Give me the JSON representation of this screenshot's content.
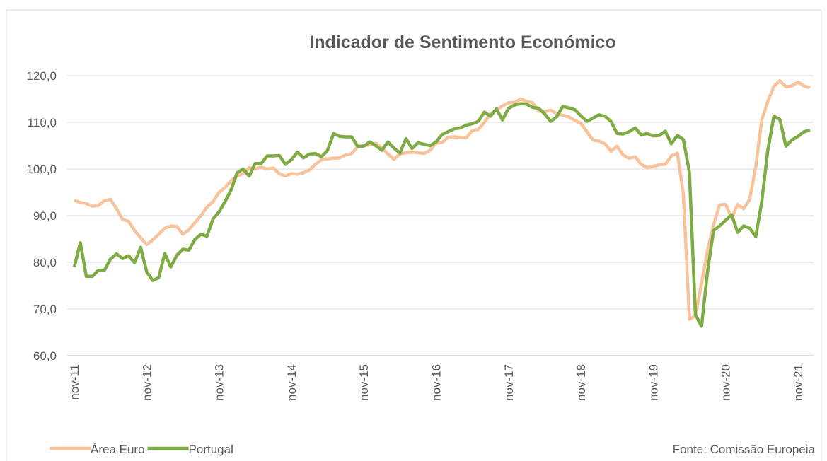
{
  "chart_data": {
    "type": "line",
    "title": "Indicador de Sentimento Económico",
    "source": "Fonte: Comissão Europeia",
    "categories": [
      "nov-11",
      null,
      null,
      null,
      null,
      null,
      null,
      null,
      null,
      null,
      null,
      null,
      "nov-12",
      null,
      null,
      null,
      null,
      null,
      null,
      null,
      null,
      null,
      null,
      null,
      "nov-13",
      null,
      null,
      null,
      null,
      null,
      null,
      null,
      null,
      null,
      null,
      null,
      "nov-14",
      null,
      null,
      null,
      null,
      null,
      null,
      null,
      null,
      null,
      null,
      null,
      "nov-15",
      null,
      null,
      null,
      null,
      null,
      null,
      null,
      null,
      null,
      null,
      null,
      "nov-16",
      null,
      null,
      null,
      null,
      null,
      null,
      null,
      null,
      null,
      null,
      null,
      "nov-17",
      null,
      null,
      null,
      null,
      null,
      null,
      null,
      null,
      null,
      null,
      null,
      "nov-18",
      null,
      null,
      null,
      null,
      null,
      null,
      null,
      null,
      null,
      null,
      null,
      "nov-19",
      null,
      null,
      null,
      null,
      null,
      null,
      null,
      null,
      null,
      null,
      null,
      "nov-20",
      null,
      null,
      null,
      null,
      null,
      null,
      null,
      null,
      null,
      null,
      null,
      "nov-21",
      null,
      null
    ],
    "series": [
      {
        "name": "Área Euro",
        "color": "#f8c39b",
        "values": [
          93.3,
          92.8,
          92.6,
          92.0,
          92.2,
          93.2,
          93.5,
          91.5,
          89.2,
          88.8,
          86.8,
          85.3,
          83.8,
          84.8,
          86.0,
          87.3,
          87.8,
          87.7,
          86.0,
          87.0,
          88.5,
          90.0,
          91.8,
          93.0,
          95.0,
          96.0,
          97.5,
          98.5,
          99.0,
          100.3,
          100.0,
          100.4,
          100.0,
          100.2,
          99.0,
          98.5,
          99.0,
          98.9,
          99.2,
          99.8,
          101.0,
          102.0,
          102.2,
          102.3,
          102.4,
          103.0,
          103.3,
          104.8,
          105.0,
          105.2,
          105.5,
          104.5,
          103.2,
          102.1,
          103.2,
          103.5,
          103.6,
          103.5,
          103.3,
          104.0,
          105.5,
          105.7,
          106.8,
          106.9,
          106.8,
          106.7,
          108.2,
          108.5,
          110.0,
          111.8,
          112.6,
          113.5,
          114.2,
          114.2,
          115.0,
          114.5,
          114.2,
          112.5,
          112.3,
          112.6,
          111.8,
          111.5,
          111.2,
          110.4,
          109.8,
          108.0,
          106.2,
          106.0,
          105.4,
          103.8,
          104.9,
          103.0,
          102.3,
          102.6,
          101.0,
          100.3,
          100.6,
          100.9,
          101.0,
          102.8,
          103.4,
          94.5,
          67.8,
          68.5,
          75.5,
          82.5,
          88.0,
          92.3,
          92.4,
          89.5,
          92.4,
          91.5,
          93.5,
          100.5,
          110.5,
          114.5,
          117.7,
          118.9,
          117.6,
          117.8,
          118.6,
          117.8,
          117.4
        ]
      },
      {
        "name": "Portugal",
        "color": "#7fab45",
        "values": [
          79.0,
          84.2,
          77.0,
          77.0,
          78.3,
          78.3,
          80.7,
          81.8,
          80.8,
          81.4,
          79.9,
          83.2,
          78.0,
          76.1,
          76.7,
          81.9,
          79.0,
          81.5,
          82.8,
          82.6,
          84.9,
          86.0,
          85.6,
          89.3,
          90.8,
          93.0,
          95.5,
          99.2,
          100.0,
          98.5,
          101.2,
          101.2,
          102.8,
          102.8,
          102.9,
          101.0,
          102.0,
          103.6,
          102.4,
          103.2,
          103.3,
          102.6,
          104.0,
          107.6,
          107.0,
          106.9,
          106.9,
          104.8,
          104.9,
          105.8,
          105.0,
          104.0,
          105.8,
          104.5,
          103.4,
          106.5,
          104.4,
          105.6,
          105.3,
          105.0,
          105.8,
          107.4,
          108.0,
          108.6,
          108.8,
          109.4,
          109.7,
          110.2,
          112.2,
          111.3,
          112.9,
          110.5,
          113.0,
          113.7,
          114.0,
          113.9,
          113.2,
          113.0,
          111.8,
          110.2,
          111.2,
          113.4,
          113.1,
          112.7,
          111.4,
          110.2,
          110.9,
          111.6,
          111.3,
          110.2,
          107.6,
          107.5,
          108.0,
          108.8,
          107.3,
          107.6,
          107.1,
          107.2,
          108.1,
          105.4,
          107.2,
          106.3,
          99.3,
          68.8,
          66.3,
          78.0,
          86.8,
          87.8,
          89.0,
          90.2,
          86.4,
          87.8,
          87.3,
          85.5,
          93.0,
          104.0,
          111.3,
          110.6,
          104.9,
          106.2,
          107.0,
          108.0,
          108.3
        ]
      }
    ],
    "ylim": [
      60,
      120
    ],
    "yticks": [
      {
        "value": 60,
        "label": "60,0"
      },
      {
        "value": 70,
        "label": "70,0"
      },
      {
        "value": 80,
        "label": "80,0"
      },
      {
        "value": 90,
        "label": "90,0"
      },
      {
        "value": 100,
        "label": "100,0"
      },
      {
        "value": 110,
        "label": "110,0"
      },
      {
        "value": 120,
        "label": "120,0"
      }
    ],
    "grid": true,
    "legend": "bottom-left"
  }
}
